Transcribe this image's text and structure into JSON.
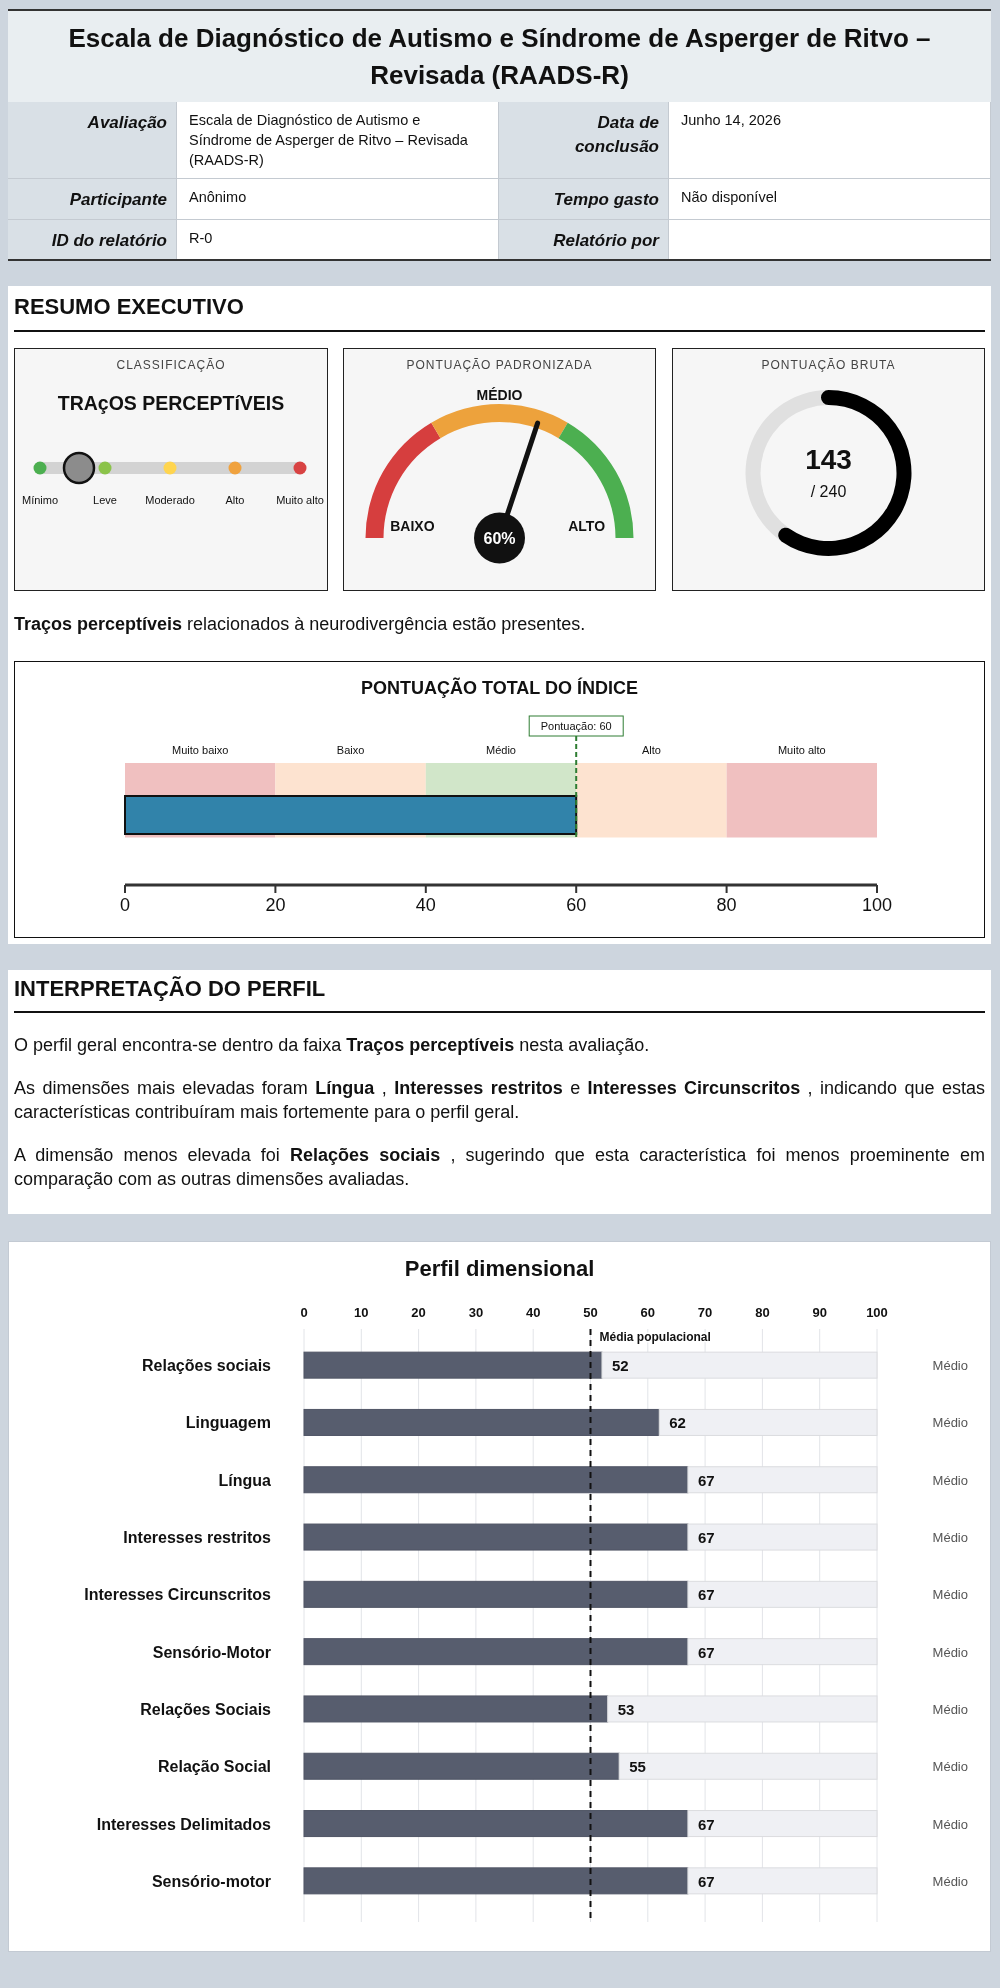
{
  "chart_data": [
    {
      "type": "other",
      "title": "Escala de Diagnóstico de Autismo e Síndrome de Asperger de Ritvo – Revisada (RAADS-R)",
      "annotations": [
        "Avaliação",
        "Escala de Diagnóstico de Autismo e Síndrome de Asperger de Ritvo – Revisada (RAADS-R)",
        "Data de conclusão",
        "Junho 14, 2026",
        "Participante",
        "Anônimo",
        "Tempo gasto",
        "Não disponível",
        "ID do relatório",
        "R-0",
        "Relatório por"
      ]
    },
    {
      "type": "other",
      "title": "RESUMO EXECUTIVO",
      "annotations": [
        "Traços perceptíveis relacionados à neurodivergência estão presentes."
      ]
    },
    {
      "type": "other",
      "title": "CLASSIFICAÇÃO",
      "subtitle": "TRAçOS PERCEPTíVEIS",
      "categories": [
        "Mínimo",
        "Leve",
        "Moderado",
        "Alto",
        "Muito alto"
      ]
    },
    {
      "type": "donut",
      "title": "PONTUAÇÃO PADRONIZADA",
      "categories": [
        "BAIXO",
        "MÉDIO",
        "ALTO"
      ],
      "values": [
        33,
        34,
        33
      ],
      "colors": [
        "#d63e3e",
        "#eda23c",
        "#4caf50"
      ],
      "needle": "MÉDIO",
      "annotations": [
        "60%"
      ]
    },
    {
      "type": "donut",
      "title": "PONTUAÇÃO BRUTA",
      "categories": [
        null,
        null
      ],
      "values": [
        143,
        97
      ],
      "colors": [
        "#000000",
        "#e0e0e0"
      ],
      "value_labels": [
        "143",
        null
      ],
      "annotations": [
        "/ 240"
      ]
    },
    {
      "type": "bar",
      "orientation": "horizontal",
      "title": "PONTUAÇÃO TOTAL DO ÍNDICE",
      "categories": [
        null
      ],
      "values": [
        60
      ],
      "color": "#3183aa",
      "xlim": [
        0,
        100
      ],
      "xticks": [
        0,
        20,
        40,
        60,
        80,
        100
      ],
      "bands": [
        {
          "axis": "x",
          "from": 0,
          "to": 20,
          "label": "Muito baixo",
          "color": "#f0c0c0"
        },
        {
          "axis": "x",
          "from": 20,
          "to": 40,
          "label": "Baixo",
          "color": "#fde3d0"
        },
        {
          "axis": "x",
          "from": 40,
          "to": 60,
          "label": "Médio",
          "color": "#d1e6c9"
        },
        {
          "axis": "x",
          "from": 60,
          "to": 80,
          "label": "Alto",
          "color": "#fde3d0"
        },
        {
          "axis": "x",
          "from": 80,
          "to": 100,
          "label": "Muito alto",
          "color": "#f0c0c0"
        }
      ],
      "ref_lines": [
        {
          "axis": "x",
          "value": 60,
          "label": "Pontuação: 60",
          "color": "#2e7d32",
          "line_style": "dashed"
        }
      ]
    },
    {
      "type": "other",
      "title": "INTERPRETAÇÃO DO PERFIL",
      "annotations": [
        "O perfil geral encontra-se dentro da faixa Traços perceptíveis nesta avaliação.",
        "As dimensões mais elevadas foram Língua , Interesses restritos e Interesses Circunscritos , indicando que estas características contribuíram mais fortemente para o perfil geral.",
        "A dimensão menos elevada foi Relações sociais , sugerindo que esta característica foi menos proeminente em comparação com as outras dimensões avaliadas."
      ]
    },
    {
      "type": "bar",
      "orientation": "horizontal",
      "stacked": true,
      "title": "Perfil dimensional",
      "categories": [
        "Relações sociais",
        "Linguagem",
        "Língua",
        "Interesses restritos",
        "Interesses Circunscritos",
        "Sensório-Motor",
        "Relações Sociais",
        "Relação Social",
        "Interesses Delimitados",
        "Sensório-motor"
      ],
      "series": [
        {
          "color": "#575d6e",
          "values": [
            52,
            62,
            67,
            67,
            67,
            67,
            53,
            55,
            67,
            67
          ],
          "value_labels": [
            "52",
            "62",
            "67",
            "67",
            "67",
            "67",
            "53",
            "55",
            "67",
            "67"
          ]
        },
        {
          "color": "#eff0f4",
          "values": [
            48,
            38,
            33,
            33,
            33,
            33,
            47,
            45,
            33,
            33
          ]
        }
      ],
      "xlim": [
        0,
        100
      ],
      "xticks": [
        0,
        10,
        20,
        30,
        40,
        50,
        60,
        70,
        80,
        90,
        100
      ],
      "grid": "x",
      "ref_lines": [
        {
          "axis": "x",
          "value": 50,
          "label": "Média populacional",
          "color": "#111111",
          "line_style": "dashed"
        }
      ],
      "annotations": [
        "Médio",
        "Médio",
        "Médio",
        "Médio",
        "Médio",
        "Médio",
        "Médio",
        "Médio",
        "Médio",
        "Médio"
      ]
    }
  ]
}
